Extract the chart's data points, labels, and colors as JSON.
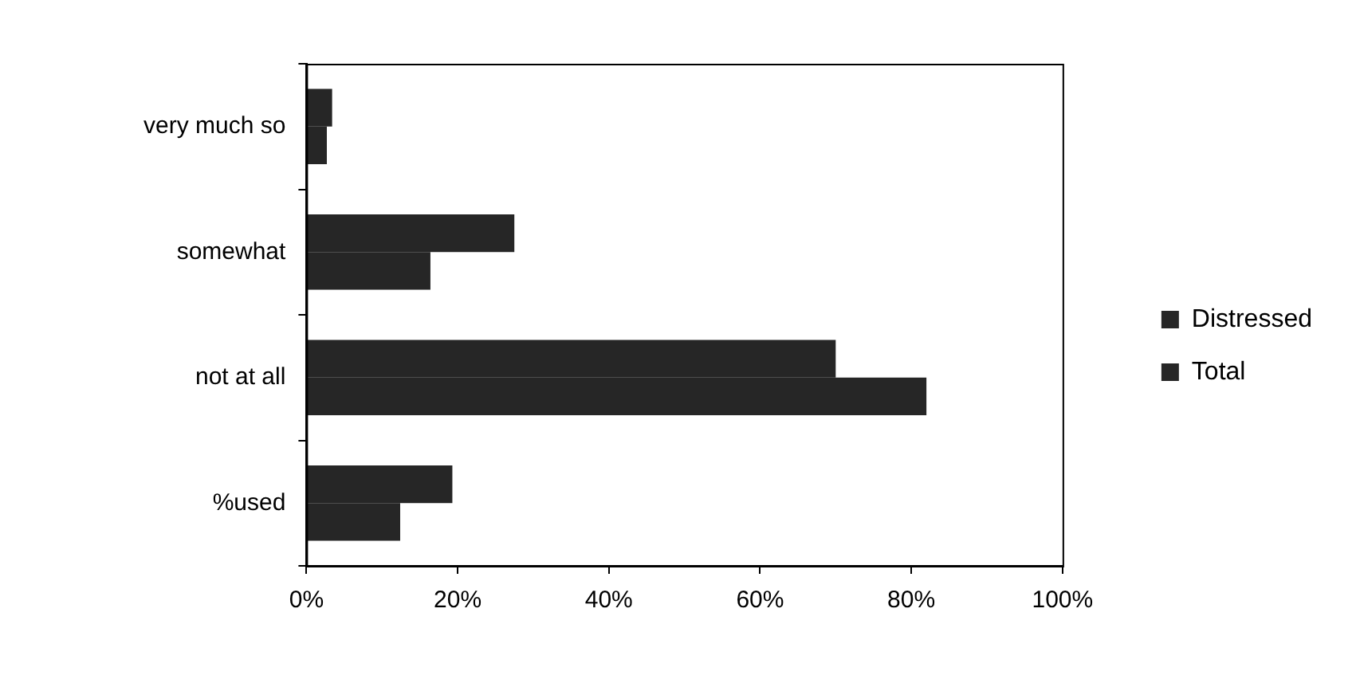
{
  "chart_data": {
    "type": "bar",
    "orientation": "horizontal",
    "categories": [
      "very much so",
      "somewhat",
      "not at all",
      "%used"
    ],
    "series": [
      {
        "name": "Distressed",
        "color": "#262626",
        "values": [
          2.7,
          16.4,
          82,
          12.4
        ]
      },
      {
        "name": "Total",
        "color": "#262626",
        "values": [
          3.4,
          27.5,
          70,
          19.3
        ]
      }
    ],
    "xlim": [
      0,
      100
    ],
    "xticks": [
      {
        "value": 0,
        "label": "0%"
      },
      {
        "value": 20,
        "label": "20%"
      },
      {
        "value": 40,
        "label": "40%"
      },
      {
        "value": 60,
        "label": "60%"
      },
      {
        "value": 80,
        "label": "80%"
      },
      {
        "value": 100,
        "label": "100%"
      }
    ],
    "legend": "right",
    "grid": false
  }
}
